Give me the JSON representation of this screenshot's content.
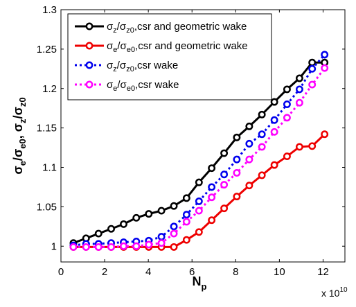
{
  "chart_data": {
    "type": "line",
    "xlabel": {
      "main": "N",
      "sub": "p"
    },
    "ylabel": {
      "p1": "σ",
      "s1": "e",
      "p2": "/σ",
      "s2": "e0",
      "p3": ", σ",
      "s3": "z",
      "p4": "/σ",
      "s4": "z0"
    },
    "x_exponent": {
      "base": "x 10",
      "power": "10"
    },
    "xlim": [
      0,
      13
    ],
    "ylim": [
      0.98,
      1.3
    ],
    "x_ticks": [
      0,
      2,
      4,
      6,
      8,
      10,
      12
    ],
    "y_ticks": [
      1,
      1.05,
      1.1,
      1.15,
      1.2,
      1.25,
      1.3
    ],
    "x_tick_labels": [
      "0",
      "2",
      "4",
      "6",
      "8",
      "10",
      "12"
    ],
    "y_tick_labels": [
      "1",
      "1.05",
      "1.1",
      "1.15",
      "1.2",
      "1.25",
      "1.3"
    ],
    "legend_position": "top-left",
    "series": [
      {
        "name": {
          "sym": "σ",
          "s1": "z",
          "mid": "/σ",
          "s2": "z0",
          "tail": ",csr and geometric wake"
        },
        "color": "#000000",
        "dash": "solid",
        "x": [
          0.57,
          1.15,
          1.72,
          2.3,
          2.87,
          3.45,
          4.02,
          4.6,
          5.17,
          5.75,
          6.32,
          6.9,
          7.47,
          8.05,
          8.62,
          9.2,
          9.77,
          10.35,
          10.92,
          11.5,
          12.07
        ],
        "y": [
          1.004,
          1.01,
          1.016,
          1.022,
          1.028,
          1.036,
          1.041,
          1.045,
          1.051,
          1.061,
          1.081,
          1.099,
          1.118,
          1.138,
          1.152,
          1.167,
          1.183,
          1.199,
          1.213,
          1.233,
          1.233
        ]
      },
      {
        "name": {
          "sym": "σ",
          "s1": "e",
          "mid": "/σ",
          "s2": "e0",
          "tail": ",csr and geometric wake"
        },
        "color": "#ee0000",
        "dash": "solid",
        "x": [
          0.57,
          1.15,
          1.72,
          2.3,
          2.87,
          3.45,
          4.02,
          4.6,
          5.17,
          5.75,
          6.32,
          6.9,
          7.47,
          8.05,
          8.62,
          9.2,
          9.77,
          10.35,
          10.92,
          11.5,
          12.07
        ],
        "y": [
          0.999,
          0.999,
          0.999,
          0.999,
          0.999,
          0.999,
          0.999,
          0.999,
          0.999,
          1.008,
          1.018,
          1.033,
          1.048,
          1.063,
          1.077,
          1.09,
          1.103,
          1.114,
          1.126,
          1.127,
          1.142
        ]
      },
      {
        "name": {
          "sym": "σ",
          "s1": "z",
          "mid": "/σ",
          "s2": "z0",
          "tail": ",csr wake"
        },
        "color": "#0000ee",
        "dash": "dotted",
        "x": [
          0.57,
          1.15,
          1.72,
          2.3,
          2.87,
          3.45,
          4.02,
          4.6,
          5.17,
          5.75,
          6.32,
          6.9,
          7.47,
          8.05,
          8.62,
          9.2,
          9.77,
          10.35,
          10.92,
          11.5,
          12.07
        ],
        "y": [
          1.001,
          1.003,
          1.003,
          1.004,
          1.005,
          1.006,
          1.007,
          1.012,
          1.025,
          1.04,
          1.057,
          1.075,
          1.091,
          1.11,
          1.13,
          1.142,
          1.16,
          1.18,
          1.199,
          1.225,
          1.243
        ]
      },
      {
        "name": {
          "sym": "σ",
          "s1": "e",
          "mid": "/σ",
          "s2": "e0",
          "tail": ",csr wake"
        },
        "color": "#ff00ff",
        "dash": "dotted",
        "x": [
          0.57,
          1.15,
          1.72,
          2.3,
          2.87,
          3.45,
          4.02,
          4.6,
          5.17,
          5.75,
          6.32,
          6.9,
          7.47,
          8.05,
          8.62,
          9.2,
          9.77,
          10.35,
          10.92,
          11.5,
          12.07
        ],
        "y": [
          0.999,
          0.999,
          0.999,
          0.999,
          1.0,
          1.0,
          1.002,
          1.004,
          1.016,
          1.031,
          1.045,
          1.062,
          1.078,
          1.093,
          1.11,
          1.126,
          1.145,
          1.163,
          1.182,
          1.205,
          1.226
        ]
      }
    ]
  }
}
